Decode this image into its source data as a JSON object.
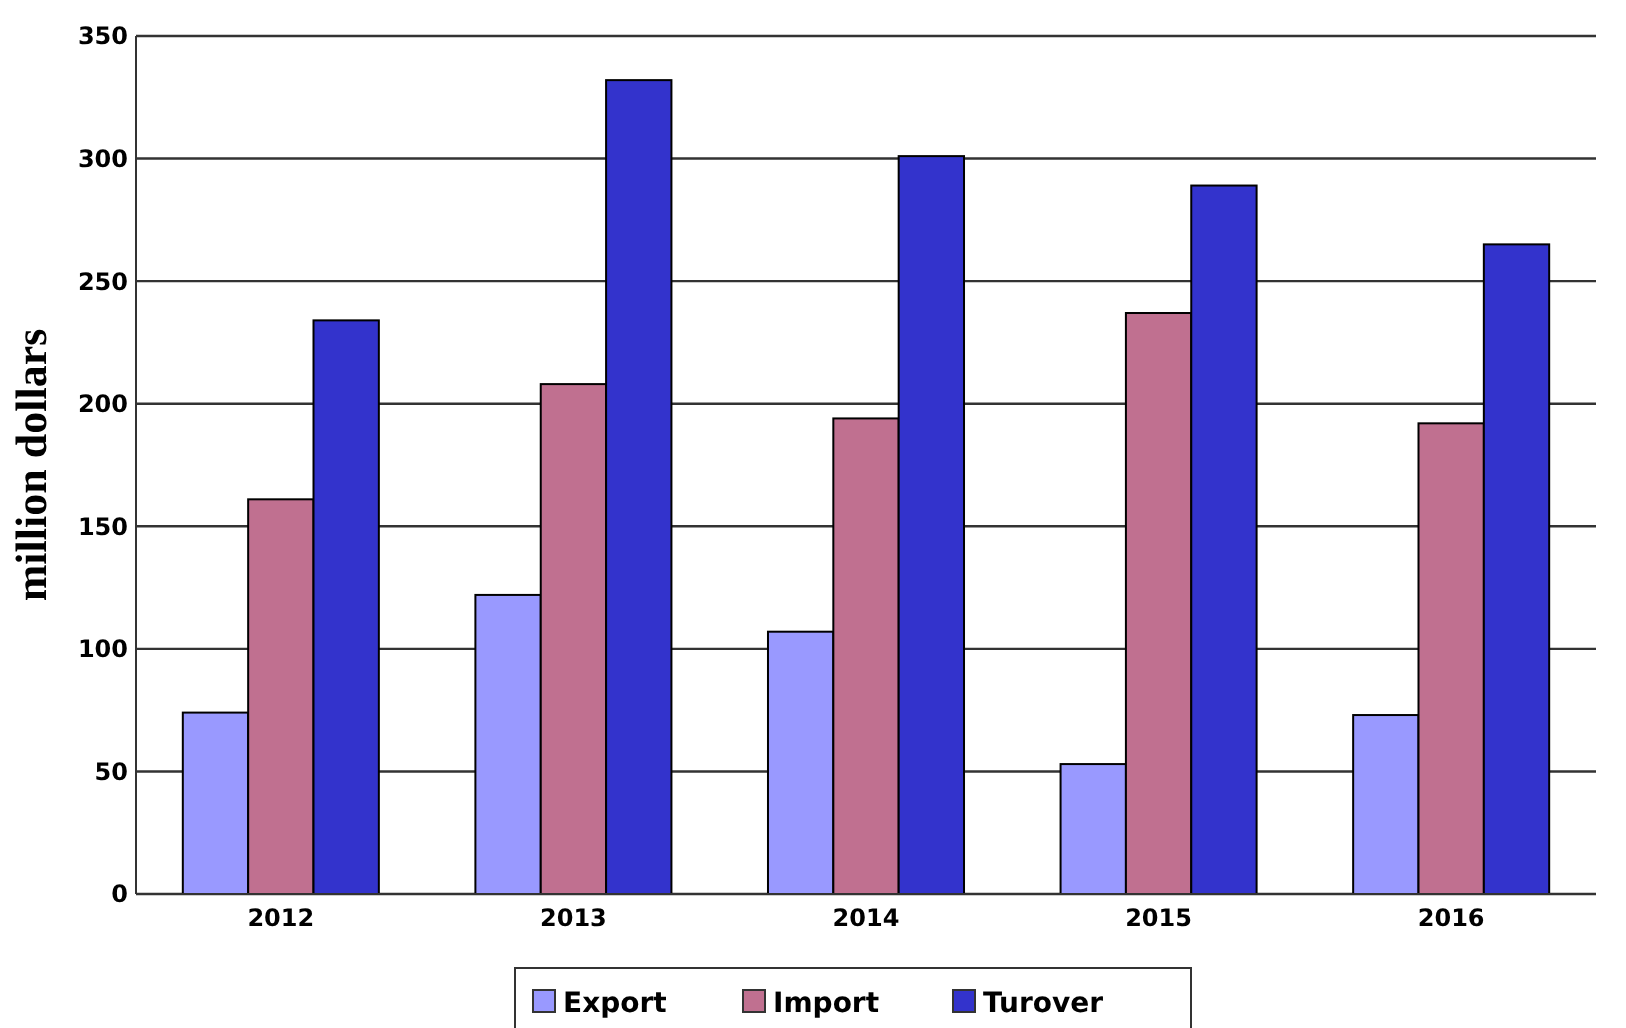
{
  "chart_data": {
    "type": "bar",
    "ylabel": "million dollars",
    "categories": [
      "2012",
      "2013",
      "2014",
      "2015",
      "2016"
    ],
    "series": [
      {
        "name": "Export",
        "color": "#9999ff",
        "values": [
          74,
          122,
          107,
          53,
          73
        ]
      },
      {
        "name": "Import",
        "color": "#c07090",
        "values": [
          161,
          208,
          194,
          237,
          192
        ]
      },
      {
        "name": "Turover",
        "color": "#3333cc",
        "values": [
          234,
          332,
          301,
          289,
          265
        ]
      }
    ],
    "ylim": [
      0,
      350
    ],
    "yticks": [
      0,
      50,
      100,
      150,
      200,
      250,
      300,
      350
    ],
    "grid": "y",
    "legend": "bottom"
  }
}
